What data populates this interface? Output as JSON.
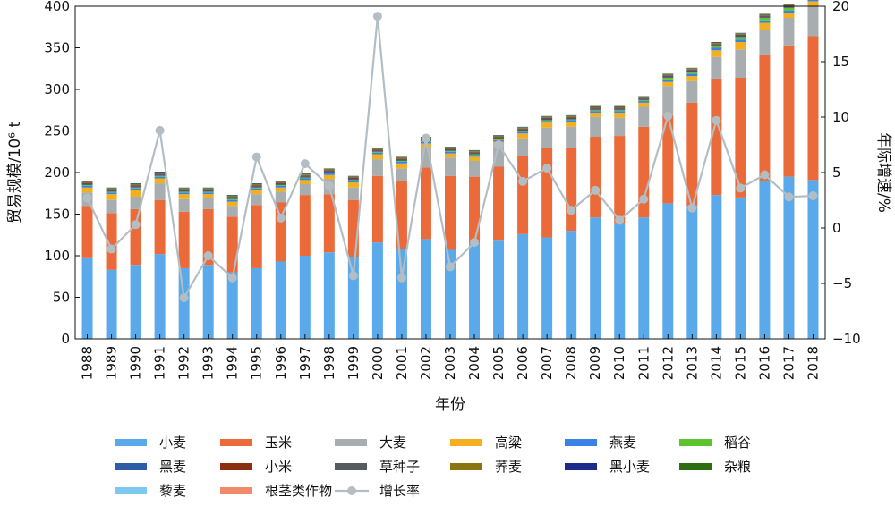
{
  "chart_data": {
    "type": "bar",
    "stacked": true,
    "categories": [
      "1988",
      "1989",
      "1990",
      "1991",
      "1992",
      "1993",
      "1994",
      "1995",
      "1996",
      "1997",
      "1998",
      "1999",
      "2000",
      "2001",
      "2002",
      "2003",
      "2004",
      "2005",
      "2006",
      "2007",
      "2008",
      "2009",
      "2010",
      "2011",
      "2012",
      "2013",
      "2014",
      "2015",
      "2016",
      "2017",
      "2018"
    ],
    "xlabel": "年份",
    "ylabel": "贸易规模/10⁶ t",
    "y2label": "年际增速/%",
    "ylim": [
      0,
      400
    ],
    "yticks": [
      0,
      50,
      100,
      150,
      200,
      250,
      300,
      350,
      400
    ],
    "y2lim": [
      -10,
      20
    ],
    "y2ticks": [
      -10,
      -5,
      0,
      5,
      10,
      15,
      20
    ],
    "grid": false,
    "legend_position": "bottom",
    "series": [
      {
        "name": "小麦",
        "color": "#5aaaeb",
        "values": [
          97,
          83,
          89,
          102,
          85,
          89,
          80,
          85,
          93,
          100,
          104,
          98,
          116,
          108,
          120,
          107,
          115,
          118,
          126,
          122,
          130,
          146,
          138,
          146,
          163,
          160,
          173,
          170,
          190,
          195,
          191
        ]
      },
      {
        "name": "玉米",
        "color": "#eb6a3a",
        "values": [
          63,
          68,
          67,
          65,
          68,
          67,
          67,
          76,
          71,
          73,
          70,
          69,
          80,
          82,
          86,
          89,
          80,
          89,
          94,
          108,
          100,
          97,
          106,
          109,
          106,
          124,
          140,
          144,
          152,
          158,
          173
        ]
      },
      {
        "name": "大麦",
        "color": "#a8adb0",
        "values": [
          16,
          16,
          15,
          20,
          15,
          13,
          13,
          13,
          13,
          13,
          18,
          15,
          20,
          15,
          23,
          22,
          19,
          25,
          21,
          24,
          25,
          24,
          22,
          24,
          35,
          26,
          26,
          34,
          30,
          33,
          36
        ]
      },
      {
        "name": "高粱",
        "color": "#f3af1f",
        "values": [
          6,
          7,
          8,
          6,
          6,
          5,
          5,
          5,
          5,
          5,
          5,
          6,
          6,
          6,
          6,
          5,
          5,
          5,
          6,
          6,
          6,
          5,
          6,
          5,
          5,
          6,
          8,
          9,
          8,
          6,
          6
        ]
      },
      {
        "name": "燕麦",
        "color": "#3b82e6",
        "values": [
          2,
          2,
          2,
          2,
          2,
          2,
          2,
          2,
          2,
          2,
          2,
          2,
          2,
          2,
          2,
          2,
          2,
          2,
          2,
          2,
          2,
          2,
          2,
          2,
          3,
          3,
          3,
          3,
          3,
          3,
          3
        ]
      },
      {
        "name": "稻谷",
        "color": "#5ec42e",
        "values": [
          1,
          1,
          1,
          1,
          1,
          1,
          1,
          1,
          1,
          1,
          1,
          1,
          1,
          1,
          1,
          1,
          1,
          1,
          1,
          1,
          1,
          1,
          1,
          1,
          2,
          2,
          2,
          3,
          3,
          3,
          3
        ]
      },
      {
        "name": "黑麦",
        "color": "#2e5da8",
        "values": [
          1,
          1,
          1,
          1,
          1,
          1,
          1,
          1,
          1,
          1,
          1,
          1,
          1,
          1,
          1,
          1,
          1,
          1,
          1,
          1,
          1,
          1,
          1,
          1,
          1,
          1,
          1,
          1,
          1,
          1,
          1
        ]
      },
      {
        "name": "小米",
        "color": "#8a2f10",
        "values": [
          1,
          1,
          1,
          1,
          1,
          1,
          1,
          1,
          1,
          1,
          1,
          1,
          1,
          1,
          1,
          1,
          1,
          1,
          1,
          1,
          1,
          1,
          1,
          1,
          1,
          1,
          1,
          1,
          1,
          1,
          1
        ]
      },
      {
        "name": "草种子",
        "color": "#555b60",
        "values": [
          1,
          1,
          1,
          1,
          1,
          1,
          1,
          1,
          1,
          1,
          1,
          1,
          1,
          1,
          1,
          1,
          1,
          1,
          1,
          1,
          1,
          1,
          1,
          1,
          1,
          1,
          1,
          1,
          1,
          1,
          1
        ]
      },
      {
        "name": "荞麦",
        "color": "#8a7410",
        "values": [
          1,
          1,
          1,
          1,
          1,
          1,
          1,
          1,
          1,
          1,
          1,
          1,
          1,
          1,
          1,
          1,
          1,
          1,
          1,
          1,
          1,
          1,
          1,
          1,
          1,
          1,
          1,
          1,
          1,
          1,
          1
        ]
      },
      {
        "name": "黑小麦",
        "color": "#1c2a8c",
        "values": [
          0.5,
          0.5,
          0.5,
          0.5,
          0.5,
          0.5,
          0.5,
          0.5,
          0.5,
          0.5,
          0.5,
          0.5,
          0.5,
          0.5,
          0.5,
          0.5,
          0.5,
          0.5,
          0.5,
          0.5,
          0.5,
          0.5,
          0.5,
          0.5,
          0.5,
          0.5,
          0.5,
          0.5,
          0.5,
          0.5,
          0.5
        ]
      },
      {
        "name": "杂粮",
        "color": "#2d6e12",
        "values": [
          0.5,
          0.5,
          0.5,
          0.5,
          0.5,
          0.5,
          0.5,
          0.5,
          0.5,
          0.5,
          0.5,
          0.5,
          0.5,
          0.5,
          0.5,
          0.5,
          0.5,
          0.5,
          0.5,
          0.5,
          0.5,
          0.5,
          0.5,
          0.5,
          0.5,
          0.5,
          0.5,
          0.5,
          0.5,
          0.5,
          0.5
        ]
      },
      {
        "name": "藜麦",
        "color": "#7cc8f0",
        "values": [
          0,
          0,
          0,
          0,
          0,
          0,
          0,
          0,
          0,
          0,
          0,
          0,
          0,
          0,
          0,
          0,
          0,
          0,
          0,
          0,
          0,
          0,
          0,
          0,
          0,
          0,
          0,
          0,
          0,
          0,
          0
        ]
      },
      {
        "name": "根茎类作物",
        "color": "#f08a68",
        "values": [
          0,
          0,
          0,
          0,
          0,
          0,
          0,
          0,
          0,
          0,
          0,
          0,
          0,
          0,
          0,
          0,
          0,
          0,
          0,
          0,
          0,
          0,
          0,
          0,
          0,
          0,
          0,
          0,
          0,
          0,
          0
        ]
      }
    ],
    "growth": {
      "name": "增长率",
      "color": "#b3bec4",
      "axis": "right",
      "values": [
        2.7,
        -1.9,
        0.3,
        8.8,
        -6.3,
        -2.5,
        -4.5,
        6.4,
        0.9,
        5.8,
        3.8,
        -4.3,
        19.1,
        -4.5,
        8.1,
        -3.5,
        -1.3,
        7.5,
        4.2,
        5.4,
        1.6,
        3.4,
        0.7,
        2.6,
        10.1,
        1.8,
        9.7,
        3.6,
        4.8,
        2.8,
        2.9
      ]
    },
    "legend": [
      [
        "小麦",
        "玉米",
        "大麦",
        "高粱",
        "燕麦",
        "稻谷"
      ],
      [
        "黑麦",
        "小米",
        "草种子",
        "荞麦",
        "黑小麦",
        "杂粮"
      ],
      [
        "藜麦",
        "根茎类作物",
        "增长率"
      ]
    ]
  }
}
